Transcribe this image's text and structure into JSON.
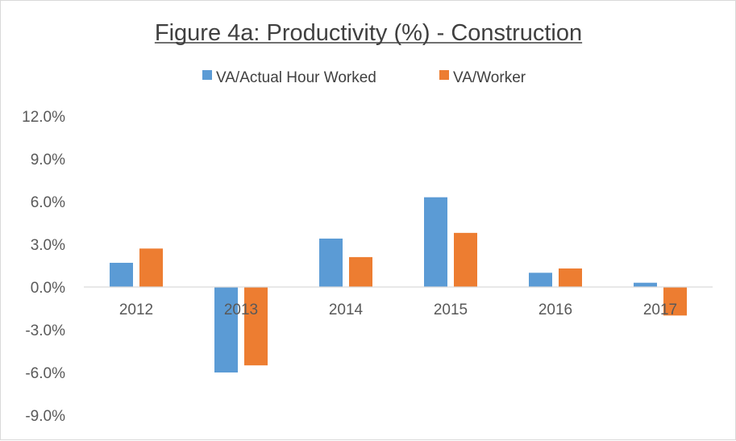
{
  "chart_data": {
    "type": "bar",
    "title": "Figure 4a: Productivity (%) - Construction",
    "categories": [
      "2012",
      "2013",
      "2014",
      "2015",
      "2016",
      "2017"
    ],
    "series": [
      {
        "name": "VA/Actual Hour Worked",
        "color": "#5b9bd5",
        "values": [
          1.7,
          -6.0,
          3.4,
          6.3,
          1.0,
          0.3
        ]
      },
      {
        "name": "VA/Worker",
        "color": "#ed7d31",
        "values": [
          2.7,
          -5.5,
          2.1,
          3.8,
          1.3,
          -2.0
        ]
      }
    ],
    "ylim": [
      -10.5,
      12.0
    ],
    "yticks": [
      12.0,
      9.0,
      6.0,
      3.0,
      0.0,
      -3.0,
      -6.0,
      -9.0
    ],
    "ytick_labels": [
      "12.0%",
      "9.0%",
      "6.0%",
      "3.0%",
      "0.0%",
      "-3.0%",
      "-6.0%",
      "-9.0%"
    ],
    "grid": false,
    "legend_position": "top",
    "xlabel": "",
    "ylabel": ""
  }
}
